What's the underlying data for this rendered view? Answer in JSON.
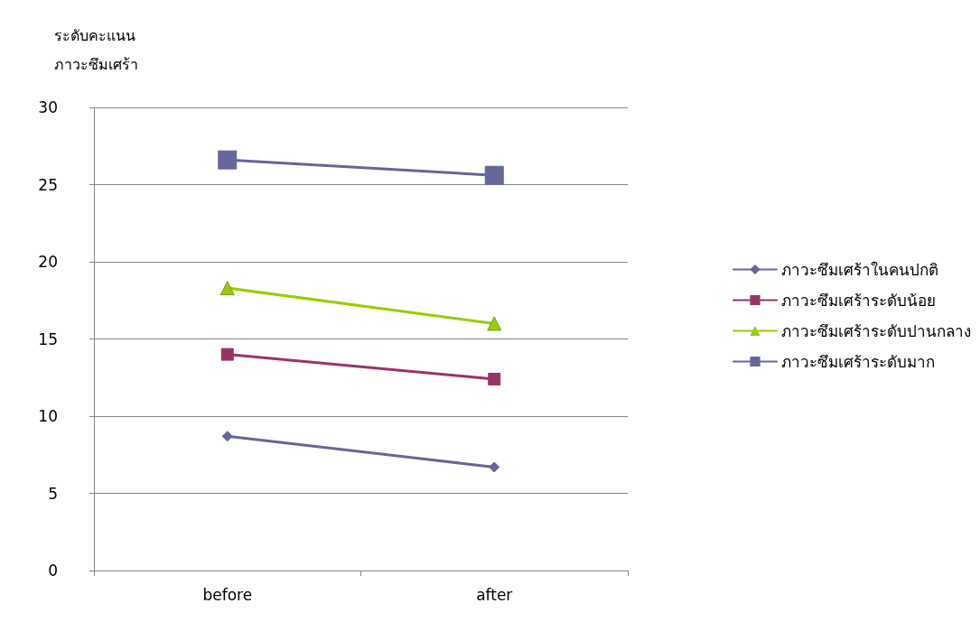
{
  "chart_data": {
    "type": "line",
    "ylabel": "ระดับคะแนน ภาวะซึมเศร้า",
    "categories": [
      "before",
      "after"
    ],
    "ylim": [
      0,
      30
    ],
    "yticks": [
      0,
      5,
      10,
      15,
      20,
      25,
      30
    ],
    "grid": "y",
    "legend": "right",
    "line_style": "solid",
    "series": [
      {
        "name": "ภาวะซึมเศร้าในคนปกติ",
        "color": "#666699",
        "marker": "diamond",
        "values": [
          8.7,
          6.7
        ]
      },
      {
        "name": "ภาวะซึมเศร้าระดับน้อย",
        "color": "#993366",
        "marker": "square",
        "values": [
          14.0,
          12.4
        ]
      },
      {
        "name": "ภาวะซึมเศร้าระดับปานกลาง",
        "color": "#99cc00",
        "marker": "triangle",
        "values": [
          18.3,
          16.0
        ]
      },
      {
        "name": "ภาวะซึมเศร้าระดับมาก",
        "color": "#666699",
        "marker": "square",
        "values": [
          26.6,
          25.6
        ]
      }
    ]
  }
}
